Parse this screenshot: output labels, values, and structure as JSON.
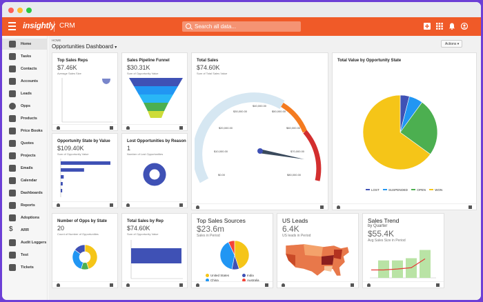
{
  "window": {
    "controls": [
      "close",
      "minimize",
      "maximize"
    ]
  },
  "app": {
    "logo": "insightly",
    "name": "CRM",
    "search_placeholder": "Search all data...",
    "brand_color": "#f05a28",
    "header_icons": [
      "add-icon",
      "apps-grid-icon",
      "bell-icon",
      "user-icon"
    ]
  },
  "sidebar": {
    "items": [
      {
        "label": "Home",
        "icon": "home-icon",
        "active": true
      },
      {
        "label": "Tasks",
        "icon": "tasks-icon"
      },
      {
        "label": "Contacts",
        "icon": "contacts-icon"
      },
      {
        "label": "Accounts",
        "icon": "accounts-icon"
      },
      {
        "label": "Leads",
        "icon": "leads-icon"
      },
      {
        "label": "Opps",
        "icon": "opps-icon"
      },
      {
        "label": "Products",
        "icon": "products-icon"
      },
      {
        "label": "Price Books",
        "icon": "price-books-icon"
      },
      {
        "label": "Quotes",
        "icon": "quotes-icon"
      },
      {
        "label": "Projects",
        "icon": "projects-icon"
      },
      {
        "label": "Emails",
        "icon": "emails-icon"
      },
      {
        "label": "Calendar",
        "icon": "calendar-icon"
      },
      {
        "label": "Dashboards",
        "icon": "dashboards-icon"
      },
      {
        "label": "Reports",
        "icon": "reports-icon"
      },
      {
        "label": "Adoptions",
        "icon": "adoptions-icon"
      },
      {
        "label": "ARR",
        "icon": "dollar-icon"
      },
      {
        "label": "Audit Loggers",
        "icon": "audit-icon"
      },
      {
        "label": "Test",
        "icon": "test-icon"
      },
      {
        "label": "Tickets",
        "icon": "tickets-icon"
      }
    ]
  },
  "main": {
    "breadcrumb": "HOME",
    "dashboard_title": "Opportunities Dashboard",
    "actions_label": "Actions"
  },
  "cards": {
    "top_reps": {
      "title": "Top Sales Reps",
      "value": "$7.46K",
      "subtitle": "Average Sales Size"
    },
    "funnel": {
      "title": "Sales Pipeline Funnel",
      "value": "$30.31K",
      "subtitle": "Sum of Opportunity Value",
      "colors": [
        "#3f51b5",
        "#2196f3",
        "#29b6f6",
        "#4caf50",
        "#cddc39"
      ]
    },
    "total_sales": {
      "title": "Total Sales",
      "value": "$74.60K",
      "subtitle": "Sum of Total Sales Value",
      "gauge_labels": [
        "$0.00",
        "$10,000.00",
        "$20,000.00",
        "$30,000.00",
        "$40,000.00",
        "$50,000.00",
        "$60,000.00",
        "$70,000.00",
        "$80,000.00"
      ]
    },
    "value_by_state": {
      "title": "Total Value by Opportunity State"
    },
    "state_by_value": {
      "title": "Opportunity State by Value",
      "value": "$109.40K",
      "subtitle": "Sum of Opportunity Value"
    },
    "lost_reason": {
      "title": "Lost Opportunities by Reason",
      "value": "1",
      "subtitle": "Number of Lost Opportunities"
    },
    "opps_by_state": {
      "title": "Number of Opps by State",
      "value": "20",
      "subtitle": "Count of Number of Opportunities"
    },
    "sales_by_rep": {
      "title": "Total Sales by Rep",
      "value": "$74.60K",
      "subtitle": "Sum of Opportunity Value"
    },
    "top_sources": {
      "title": "Top Sales Sources",
      "value": "$23.6m",
      "subtitle": "Sales in Period",
      "legend": [
        {
          "label": "United States",
          "color": "#f5c518"
        },
        {
          "label": "India",
          "color": "#3f51b5"
        },
        {
          "label": "China",
          "color": "#2196f3"
        },
        {
          "label": "Australia",
          "color": "#f44336"
        }
      ]
    },
    "us_leads": {
      "title": "US Leads",
      "value": "6.4K",
      "subtitle": "US leads in Period"
    },
    "sales_trend": {
      "title": "Sales Trend",
      "by": "by Quarter",
      "value": "$55.4K",
      "subtitle": "Avg Sales Size in Period"
    }
  },
  "chart_data": [
    {
      "type": "pie",
      "title": "Total Value by Opportunity State",
      "series": [
        {
          "name": "LOST",
          "value": 4,
          "color": "#3f51b5"
        },
        {
          "name": "SUSPENDED",
          "value": 6,
          "color": "#2196f3"
        },
        {
          "name": "OPEN",
          "value": 25,
          "color": "#4caf50"
        },
        {
          "name": "WON",
          "value": 65,
          "color": "#f5c518"
        }
      ]
    },
    {
      "type": "bar",
      "title": "Opportunity State by Value",
      "orientation": "horizontal",
      "values": [
        100,
        47,
        6,
        4,
        3
      ],
      "color": "#3f51b5"
    },
    {
      "type": "pie",
      "title": "Top Sales Sources",
      "series": [
        {
          "name": "United States",
          "value": 45,
          "color": "#f5c518"
        },
        {
          "name": "India",
          "value": 8,
          "color": "#3f51b5"
        },
        {
          "name": "China",
          "value": 40,
          "color": "#2196f3"
        },
        {
          "name": "Australia",
          "value": 7,
          "color": "#f44336"
        }
      ]
    },
    {
      "type": "pie",
      "title": "Number of Opps by State",
      "donut": true,
      "series": [
        {
          "name": "WON",
          "value": 45,
          "color": "#f5c518"
        },
        {
          "name": "OPEN",
          "value": 10,
          "color": "#4caf50"
        },
        {
          "name": "SUSPENDED",
          "value": 30,
          "color": "#2196f3"
        },
        {
          "name": "LOST",
          "value": 15,
          "color": "#3f51b5"
        }
      ]
    },
    {
      "type": "bar",
      "title": "Sales Trend",
      "values": [
        55,
        55,
        62,
        88
      ],
      "line": [
        25,
        28,
        32,
        60
      ]
    }
  ]
}
